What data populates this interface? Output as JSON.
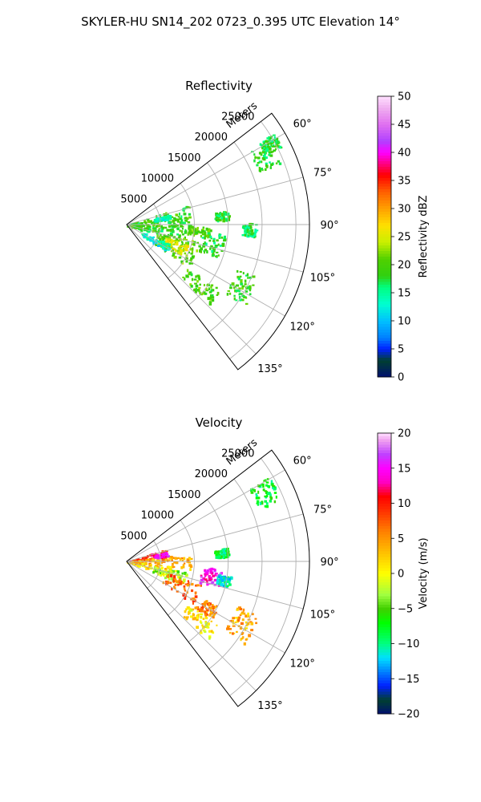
{
  "figure": {
    "suptitle": "SKYLER-HU  SN14_202  0723_0.395 UTC Elevation 14°"
  },
  "chart_data": [
    {
      "type": "heatmap",
      "projection": "polar-sector",
      "title": "Reflectivity",
      "range_label": "Meters",
      "radial_ticks": [
        5000,
        10000,
        15000,
        20000,
        25000
      ],
      "radial_tick_labels": [
        "5000",
        "10000",
        "15000",
        "20000",
        "25000"
      ],
      "azimuth_ticks": [
        60,
        75,
        90,
        105,
        120,
        135
      ],
      "azimuth_tick_labels": [
        "60°",
        "75°",
        "90°",
        "105°",
        "120°",
        "135°"
      ],
      "azimuth_range": [
        52.5,
        142.5
      ],
      "range_max": 27000,
      "grid": true,
      "colorbar": {
        "label": "Reflectivity dBZ",
        "range": [
          0,
          50
        ],
        "ticks": [
          0,
          5,
          10,
          15,
          20,
          25,
          30,
          35,
          40,
          45,
          50
        ],
        "tick_labels": [
          "0",
          "5",
          "10",
          "15",
          "20",
          "25",
          "30",
          "35",
          "40",
          "45",
          "50"
        ],
        "stops": [
          [
            0,
            "#001070"
          ],
          [
            3,
            "#004030"
          ],
          [
            5,
            "#0020ff"
          ],
          [
            7,
            "#0080ff"
          ],
          [
            10,
            "#00c0ff"
          ],
          [
            13,
            "#00ffd0"
          ],
          [
            16,
            "#00ff80"
          ],
          [
            18,
            "#30d010"
          ],
          [
            21,
            "#50d000"
          ],
          [
            24,
            "#c8f000"
          ],
          [
            27,
            "#ffe000"
          ],
          [
            30,
            "#ffa000"
          ],
          [
            33,
            "#ff6000"
          ],
          [
            36,
            "#ff0000"
          ],
          [
            38,
            "#ff0080"
          ],
          [
            40,
            "#ff00ff"
          ],
          [
            42,
            "#b040ff"
          ],
          [
            45,
            "#e070f0"
          ],
          [
            48,
            "#f0b0f0"
          ],
          [
            50,
            "#ffe0ff"
          ]
        ]
      },
      "echo_regions": [
        {
          "az": [
            72,
            108
          ],
          "r": [
            0,
            9500
          ],
          "value": 19
        },
        {
          "az": [
            91,
            98
          ],
          "r": [
            9000,
            12500
          ],
          "value": 20
        },
        {
          "az": [
            103,
            125
          ],
          "r": [
            4500,
            11000
          ],
          "value": 21
        },
        {
          "az": [
            108,
            118
          ],
          "r": [
            6000,
            9500
          ],
          "value": 25
        },
        {
          "az": [
            114,
            124
          ],
          "r": [
            2500,
            7000
          ],
          "value": 13
        },
        {
          "az": [
            95,
            110
          ],
          "r": [
            11000,
            14500
          ],
          "value": 18
        },
        {
          "az": [
            76,
            82
          ],
          "r": [
            4000,
            6500
          ],
          "value": 14
        },
        {
          "az": [
            82,
            87
          ],
          "r": [
            13000,
            15000
          ],
          "value": 18
        },
        {
          "az": [
            59,
            68
          ],
          "r": [
            21000,
            24500
          ],
          "value": 18
        },
        {
          "az": [
            58,
            63
          ],
          "r": [
            23000,
            25500
          ],
          "value": 18
        },
        {
          "az": [
            112,
            125
          ],
          "r": [
            17500,
            21000
          ],
          "value": 19
        },
        {
          "az": [
            125,
            134
          ],
          "r": [
            11000,
            17000
          ],
          "value": 20
        },
        {
          "az": [
            89,
            95
          ],
          "r": [
            17000,
            19000
          ],
          "value": 17
        }
      ]
    },
    {
      "type": "heatmap",
      "projection": "polar-sector",
      "title": "Velocity",
      "range_label": "Meters",
      "radial_ticks": [
        5000,
        10000,
        15000,
        20000,
        25000
      ],
      "radial_tick_labels": [
        "5000",
        "10000",
        "15000",
        "20000",
        "25000"
      ],
      "azimuth_ticks": [
        60,
        75,
        90,
        105,
        120,
        135
      ],
      "azimuth_tick_labels": [
        "60°",
        "75°",
        "90°",
        "105°",
        "120°",
        "135°"
      ],
      "azimuth_range": [
        52.5,
        142.5
      ],
      "range_max": 27000,
      "grid": true,
      "colorbar": {
        "label": "Velocity (m/s)",
        "range": [
          -20,
          20
        ],
        "ticks": [
          -20,
          -15,
          -10,
          -5,
          0,
          5,
          10,
          15,
          20
        ],
        "tick_labels": [
          "−20",
          "−15",
          "−10",
          "−5",
          "0",
          "5",
          "10",
          "15",
          "20"
        ],
        "stops": [
          [
            -20,
            "#001070"
          ],
          [
            -18,
            "#004030"
          ],
          [
            -16,
            "#0020ff"
          ],
          [
            -14,
            "#0080ff"
          ],
          [
            -12,
            "#00e0ff"
          ],
          [
            -10,
            "#00ff80"
          ],
          [
            -7,
            "#00ff00"
          ],
          [
            -5,
            "#40d000"
          ],
          [
            -3,
            "#a0ff40"
          ],
          [
            0,
            "#ffff00"
          ],
          [
            3,
            "#ffc000"
          ],
          [
            6,
            "#ff8000"
          ],
          [
            9,
            "#ff3000"
          ],
          [
            11,
            "#ff0000"
          ],
          [
            13,
            "#ff00c0"
          ],
          [
            15,
            "#ff00ff"
          ],
          [
            17,
            "#c040ff"
          ],
          [
            19,
            "#f0a0f0"
          ],
          [
            20,
            "#ffe0ff"
          ]
        ]
      },
      "echo_regions": [
        {
          "az": [
            72,
            82
          ],
          "r": [
            0,
            6000
          ],
          "value": 10
        },
        {
          "az": [
            82,
            96
          ],
          "r": [
            0,
            9500
          ],
          "value": 4
        },
        {
          "az": [
            96,
            108
          ],
          "r": [
            0,
            6500
          ],
          "value": 2
        },
        {
          "az": [
            100,
            112
          ],
          "r": [
            4000,
            9000
          ],
          "value": -3
        },
        {
          "az": [
            106,
            122
          ],
          "r": [
            6000,
            11500
          ],
          "value": 7
        },
        {
          "az": [
            94,
            106
          ],
          "r": [
            11000,
            14000
          ],
          "value": 15
        },
        {
          "az": [
            98,
            104
          ],
          "r": [
            13500,
            15500
          ],
          "value": -11
        },
        {
          "az": [
            76,
            82
          ],
          "r": [
            4000,
            6000
          ],
          "value": 14
        },
        {
          "az": [
            82,
            87
          ],
          "r": [
            13000,
            15000
          ],
          "value": -8
        },
        {
          "az": [
            59,
            68
          ],
          "r": [
            21000,
            24500
          ],
          "value": -8
        },
        {
          "az": [
            112,
            125
          ],
          "r": [
            17500,
            21000
          ],
          "value": 4
        },
        {
          "az": [
            125,
            134
          ],
          "r": [
            11000,
            16500
          ],
          "value": 1
        },
        {
          "az": [
            116,
            124
          ],
          "r": [
            12000,
            15000
          ],
          "value": 6
        }
      ]
    }
  ]
}
